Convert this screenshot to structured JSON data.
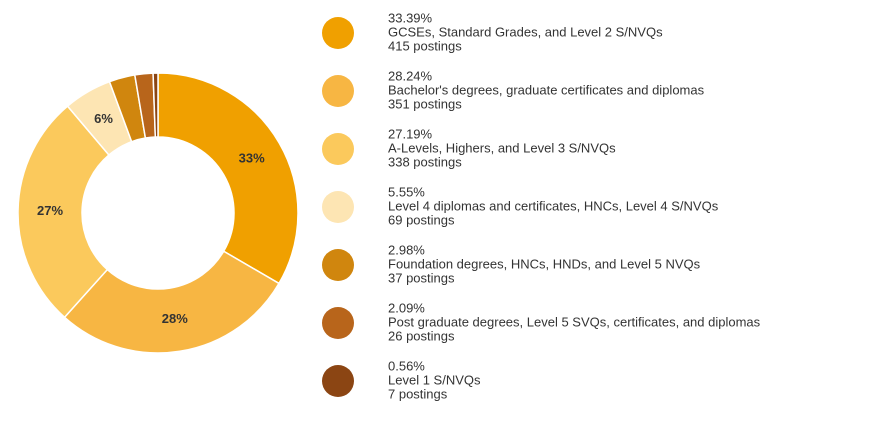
{
  "chart_data": {
    "type": "pie",
    "categories": [
      "GCSEs, Standard Grades, and Level 2 S/NVQs",
      "Bachelor's degrees, graduate certificates and diplomas",
      "A-Levels, Highers, and Level 3 S/NVQs",
      "Level 4 diplomas and certificates, HNCs, Level 4 S/NVQs",
      "Foundation degrees, HNCs, HNDs, and Level 5 NVQs",
      "Post graduate degrees, Level 5 SVQs, certificates, and diplomas",
      "Level 1 S/NVQs"
    ],
    "values": [
      33.39,
      28.24,
      27.19,
      5.55,
      2.98,
      2.09,
      0.56
    ],
    "legend_labels": [
      "33.39%",
      "28.24%",
      "27.19%",
      "5.55%",
      "2.98%",
      "2.09%",
      "0.56%"
    ],
    "value_labels": [
      "33%",
      "28%",
      "27%",
      "6%",
      null,
      null,
      null
    ],
    "counts": [
      "415 postings",
      "351 postings",
      "338 postings",
      "69 postings",
      "37 postings",
      "26 postings",
      "7 postings"
    ],
    "colors": [
      "#f0a000",
      "#f7b643",
      "#fbc95c",
      "#fde5b3",
      "#d0860e",
      "#b8651b",
      "#8b4513"
    ]
  }
}
